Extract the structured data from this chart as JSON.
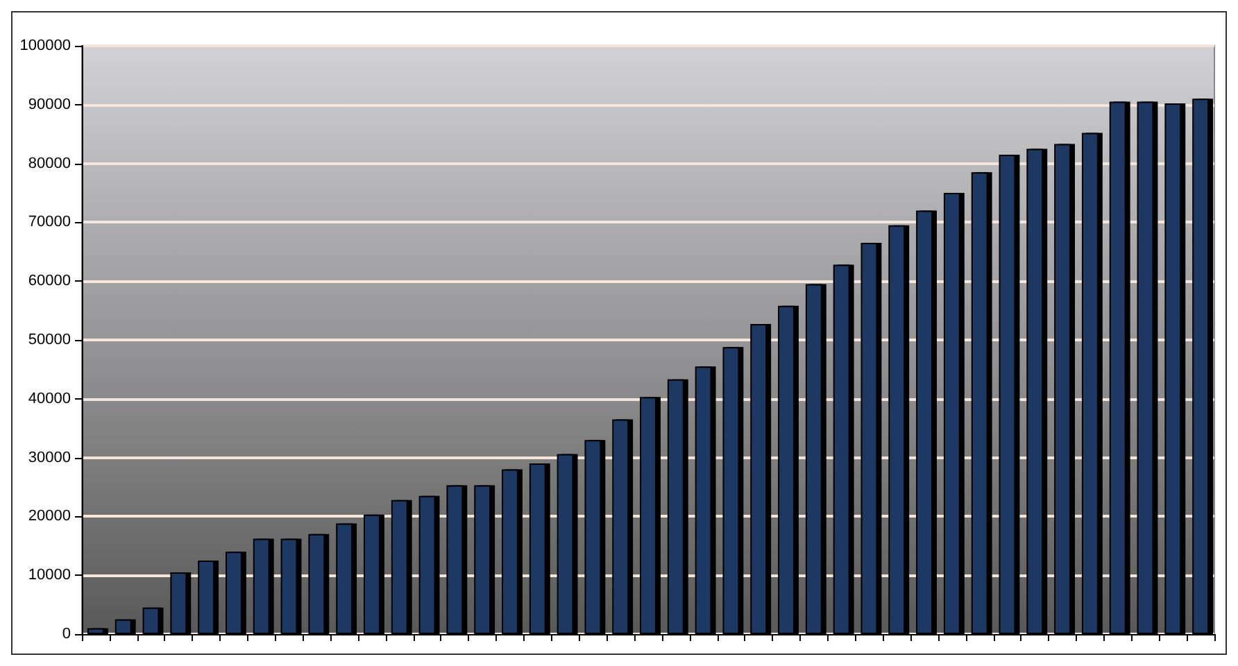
{
  "chart_data": {
    "type": "bar",
    "categories": [
      null,
      null,
      null,
      null,
      null,
      null,
      null,
      null,
      null,
      null,
      null,
      null,
      null,
      null,
      null,
      null,
      null,
      null,
      null,
      null,
      null,
      null,
      null,
      null,
      null,
      null,
      null,
      null,
      null,
      null,
      null,
      null,
      null,
      null,
      null,
      null,
      null,
      null,
      null,
      null,
      null
    ],
    "values": [
      1000,
      2500,
      4500,
      10500,
      12500,
      14000,
      16200,
      16200,
      17000,
      18800,
      20300,
      22800,
      23500,
      25300,
      25300,
      28000,
      29000,
      30600,
      33000,
      36500,
      40300,
      43300,
      45500,
      48800,
      52700,
      55800,
      59500,
      62800,
      66500,
      69500,
      72000,
      75000,
      78500,
      81500,
      82500,
      83300,
      85200,
      90500,
      90500,
      90200,
      91000
    ],
    "color": "#1f3864",
    "ylim": [
      0,
      100000
    ],
    "yticks": [
      0,
      10000,
      20000,
      30000,
      40000,
      50000,
      60000,
      70000,
      80000,
      90000,
      100000
    ],
    "grid": "y"
  }
}
